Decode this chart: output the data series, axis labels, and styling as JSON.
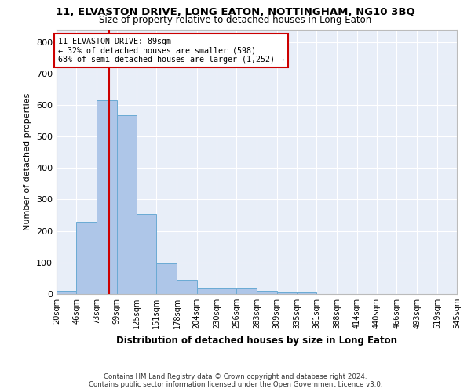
{
  "title": "11, ELVASTON DRIVE, LONG EATON, NOTTINGHAM, NG10 3BQ",
  "subtitle": "Size of property relative to detached houses in Long Eaton",
  "xlabel": "Distribution of detached houses by size in Long Eaton",
  "ylabel": "Number of detached properties",
  "bar_color": "#aec6e8",
  "bar_edge_color": "#6aaad4",
  "background_color": "#e8eef8",
  "grid_color": "#ffffff",
  "annotation_box_color": "#cc0000",
  "property_line_color": "#cc0000",
  "property_sqm": 89,
  "annotation_line1": "11 ELVASTON DRIVE: 89sqm",
  "annotation_line2": "← 32% of detached houses are smaller (598)",
  "annotation_line3": "68% of semi-detached houses are larger (1,252) →",
  "bin_edges": [
    20,
    46,
    73,
    99,
    125,
    151,
    178,
    204,
    230,
    256,
    283,
    309,
    335,
    361,
    388,
    414,
    440,
    466,
    493,
    519,
    545
  ],
  "bin_heights": [
    10,
    228,
    615,
    567,
    253,
    97,
    44,
    20,
    20,
    19,
    10,
    6,
    6,
    0,
    0,
    0,
    0,
    0,
    0,
    0
  ],
  "ylim": [
    0,
    840
  ],
  "yticks": [
    0,
    100,
    200,
    300,
    400,
    500,
    600,
    700,
    800
  ],
  "footer_line1": "Contains HM Land Registry data © Crown copyright and database right 2024.",
  "footer_line2": "Contains public sector information licensed under the Open Government Licence v3.0."
}
